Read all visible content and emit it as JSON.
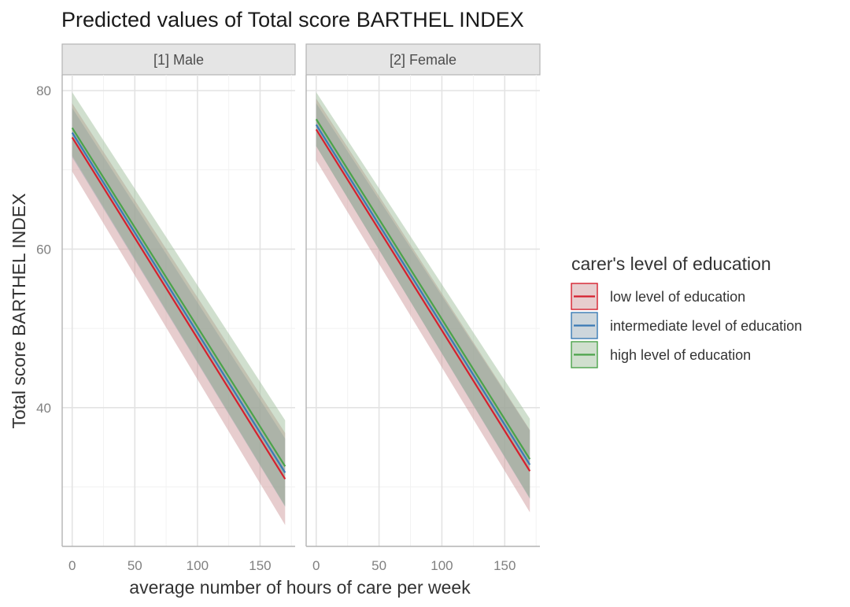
{
  "chart_data": {
    "type": "line",
    "title": "Predicted values of Total score BARTHEL INDEX",
    "xlabel": "average number of hours of care per week",
    "ylabel": "Total score BARTHEL INDEX",
    "xlim": [
      -8,
      178
    ],
    "ylim": [
      22.5,
      82
    ],
    "x_ticks": [
      0,
      50,
      100,
      150
    ],
    "y_ticks": [
      40,
      60,
      80
    ],
    "grid": true,
    "legend": {
      "title": "carer's level of education",
      "position": "right"
    },
    "series_styles": [
      {
        "name": "low level of education",
        "color": "#d6202e",
        "ribbon": "#f3a0a8"
      },
      {
        "name": "intermediate level of education",
        "color": "#3a7ab5",
        "ribbon": "#9dbbd6"
      },
      {
        "name": "high level of education",
        "color": "#4ba34a",
        "ribbon": "#a9d7a8"
      }
    ],
    "panels": [
      {
        "label": "[1] Male",
        "series": [
          {
            "name": "low level of education",
            "x": [
              0,
              170
            ],
            "y": [
              74.1,
              31.0
            ],
            "ci_low": [
              69.8,
              25.2
            ],
            "ci_high": [
              78.4,
              36.8
            ]
          },
          {
            "name": "intermediate level of education",
            "x": [
              0,
              170
            ],
            "y": [
              74.7,
              31.8
            ],
            "ci_low": [
              71.6,
              27.5
            ],
            "ci_high": [
              77.8,
              36.1
            ]
          },
          {
            "name": "high level of education",
            "x": [
              0,
              170
            ],
            "y": [
              75.3,
              32.6
            ],
            "ci_low": [
              71.8,
              27.6
            ],
            "ci_high": [
              79.8,
              38.4
            ]
          }
        ]
      },
      {
        "label": "[2] Female",
        "series": [
          {
            "name": "low level of education",
            "x": [
              0,
              170
            ],
            "y": [
              75.1,
              32.0
            ],
            "ci_low": [
              71.2,
              26.8
            ],
            "ci_high": [
              79.0,
              37.2
            ]
          },
          {
            "name": "intermediate level of education",
            "x": [
              0,
              170
            ],
            "y": [
              75.7,
              32.8
            ],
            "ci_low": [
              73.0,
              28.5
            ],
            "ci_high": [
              78.4,
              37.1
            ]
          },
          {
            "name": "high level of education",
            "x": [
              0,
              170
            ],
            "y": [
              76.4,
              33.5
            ],
            "ci_low": [
              73.0,
              28.6
            ],
            "ci_high": [
              79.8,
              38.6
            ]
          }
        ]
      }
    ]
  }
}
